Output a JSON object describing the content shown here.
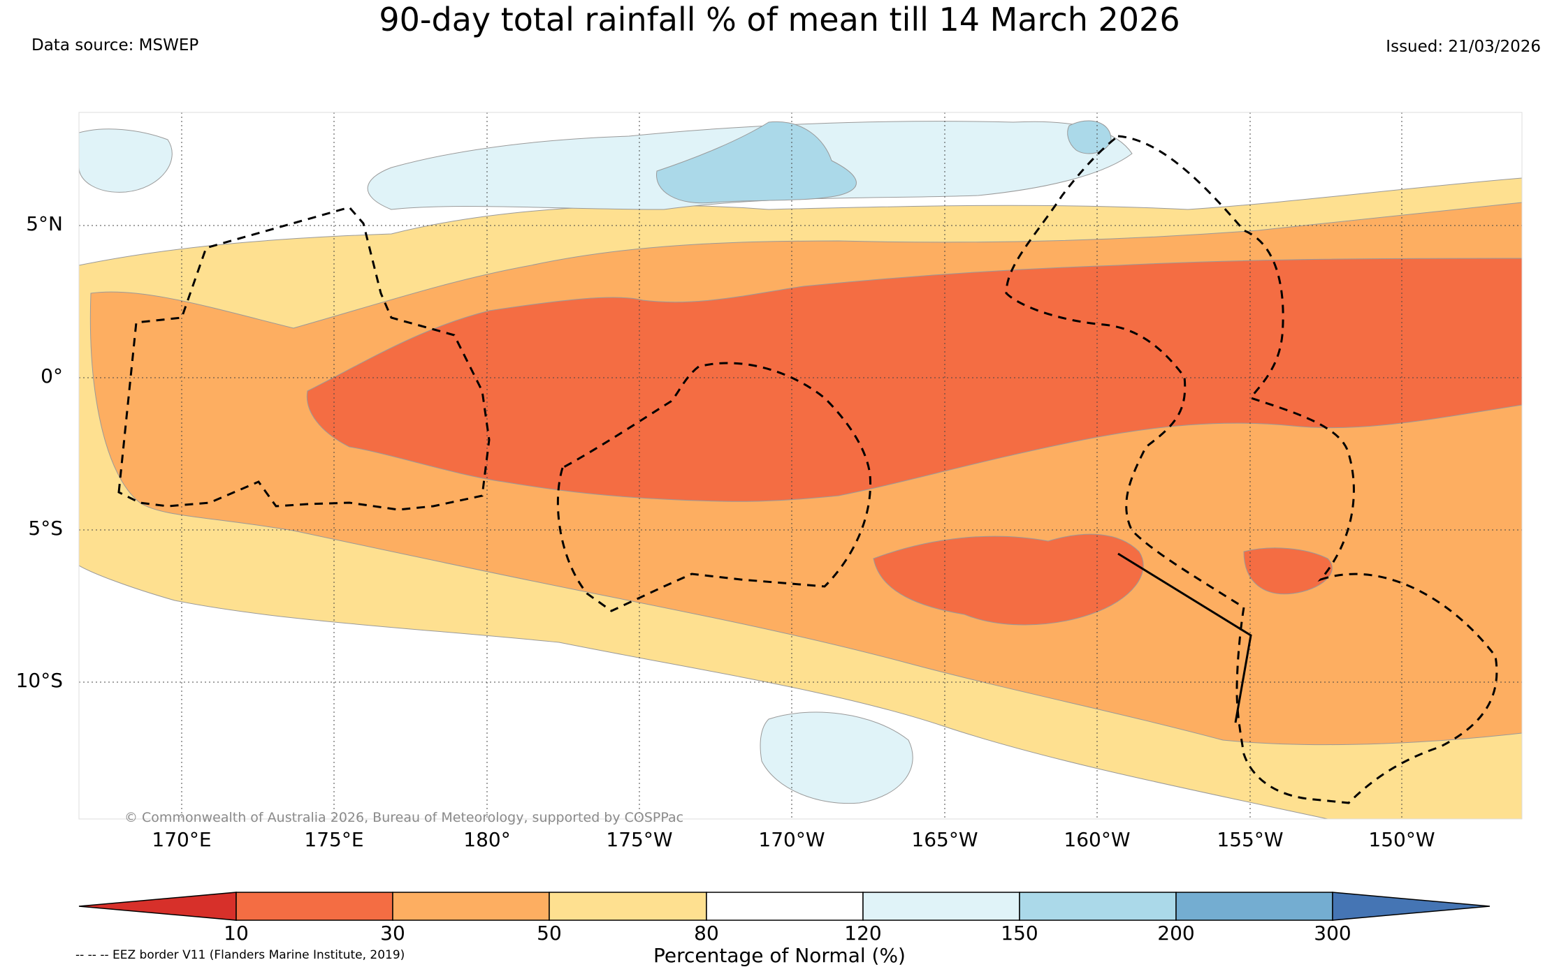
{
  "title": "90-day total rainfall % of mean till 14 March 2026",
  "data_source": "Data source: MSWEP",
  "issued": "Issued: 21/03/2026",
  "copyright": "© Commonwealth of Australia 2026, Bureau of Meteorology, supported by COSPPac",
  "latitude_labels": [
    "5°N",
    "0°",
    "5°S",
    "10°S"
  ],
  "longitude_labels": [
    "170°E",
    "175°E",
    "180°",
    "175°W",
    "170°W",
    "165°W",
    "160°W",
    "155°W",
    "150°W"
  ],
  "colorbar": {
    "title": "Percentage of Normal (%)",
    "ticks": [
      "10",
      "30",
      "50",
      "80",
      "120",
      "150",
      "200",
      "300"
    ],
    "colors": {
      "below_10": "#d7302a",
      "10_30": "#f46d43",
      "30_50": "#fdae61",
      "50_80": "#fee090",
      "80_120": "#ffffff",
      "120_150": "#e0f3f8",
      "150_200": "#abd9e9",
      "200_300": "#74add1",
      "above_300": "#4575b4"
    }
  },
  "legend_note": "-- -- -- EEZ border V11 (Flanders Marine Institute, 2019)"
}
